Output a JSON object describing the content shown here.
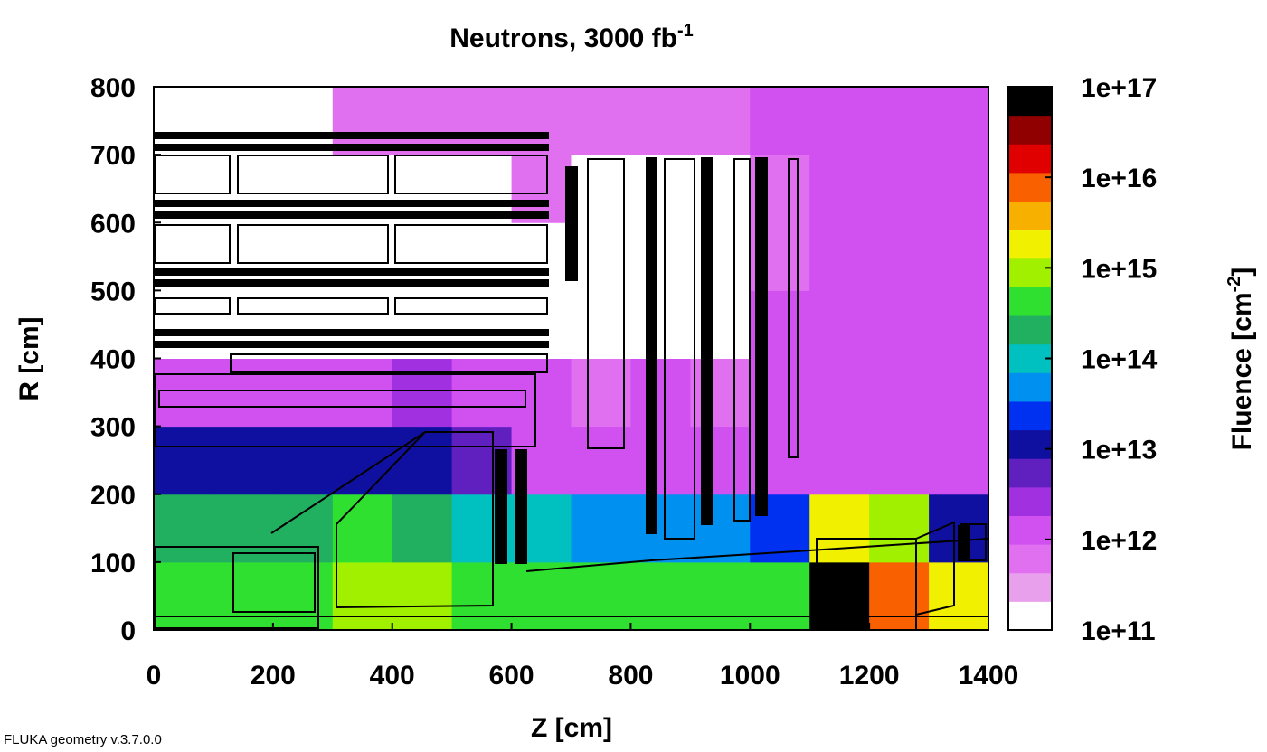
{
  "chart_data": {
    "type": "heatmap",
    "title": "Neutrons, 3000 fb",
    "title_superscript": "-1",
    "x_label": "Z [cm]",
    "y_label": "R [cm]",
    "colorbar_label": "Fluence [cm",
    "colorbar_label_superscript": "-2",
    "colorbar_label_end": "]",
    "footer": "FLUKA geometry v.3.7.0.0",
    "xlim": [
      0,
      1400
    ],
    "ylim": [
      0,
      800
    ],
    "xticks": [
      0,
      200,
      400,
      600,
      800,
      1000,
      1200,
      1400
    ],
    "yticks": [
      0,
      100,
      200,
      300,
      400,
      500,
      600,
      700,
      800
    ],
    "xbins": [
      0,
      100,
      200,
      300,
      400,
      500,
      600,
      700,
      800,
      900,
      1000,
      1100,
      1200,
      1300,
      1400
    ],
    "ybins": [
      0,
      100,
      200,
      300,
      400,
      500,
      600,
      700,
      800
    ],
    "log_color_scale": true,
    "zlim": [
      100000000000.0,
      1e+17
    ],
    "zticks": [
      {
        "value": 100000000000.0,
        "label": "1e+11"
      },
      {
        "value": 1000000000000.0,
        "label": "1e+12"
      },
      {
        "value": 10000000000000.0,
        "label": "1e+13"
      },
      {
        "value": 100000000000000.0,
        "label": "1e+14"
      },
      {
        "value": 1000000000000000.0,
        "label": "1e+15"
      },
      {
        "value": 1e+16,
        "label": "1e+16"
      },
      {
        "value": 1e+17,
        "label": "1e+17"
      }
    ],
    "colors": [
      "#ffffff",
      "#e8a0ec",
      "#e070f0",
      "#d050f0",
      "#a030e0",
      "#6020c0",
      "#1010a0",
      "#0030f0",
      "#0090f0",
      "#00c0c0",
      "#20b060",
      "#30e030",
      "#a0f000",
      "#f0f000",
      "#f8b000",
      "#f86000",
      "#e00000",
      "#900000",
      "#000000"
    ],
    "z": [
      [
        500000000000000.0,
        500000000000000.0,
        500000000000000.0,
        2000000000000000.0,
        1000000000000000.0,
        500000000000000.0,
        500000000000000.0,
        500000000000000.0,
        500000000000000.0,
        500000000000000.0,
        500000000000000.0,
        1e+17,
        1e+16,
        3000000000000000.0
      ],
      [
        300000000000000.0,
        300000000000000.0,
        300000000000000.0,
        500000000000000.0,
        300000000000000.0,
        100000000000000.0,
        100000000000000.0,
        50000000000000.0,
        50000000000000.0,
        50000000000000.0,
        30000000000000.0,
        3000000000000000.0,
        1000000000000000.0,
        20000000000000.0
      ],
      [
        10000000000000.0,
        10000000000000.0,
        10000000000000.0,
        10000000000000.0,
        20000000000000.0,
        5000000000000.0,
        2000000000000.0,
        1000000000000.0,
        2000000000000.0,
        1000000000000.0,
        1000000000000.0,
        1000000000000.0,
        1000000000000.0,
        1000000000000.0
      ],
      [
        2000000000000.0,
        2000000000000.0,
        2000000000000.0,
        2000000000000.0,
        3000000000000.0,
        2000000000000.0,
        1000000000000.0,
        500000000000.0,
        1000000000000.0,
        500000000000.0,
        1000000000000.0,
        1000000000000.0,
        1000000000000.0,
        1000000000000.0
      ],
      [
        100000000000.0,
        100000000000.0,
        100000000000.0,
        100000000000.0,
        100000000000.0,
        100000000000.0,
        100000000000.0,
        100000000000.0,
        100000000000.0,
        100000000000.0,
        1000000000000.0,
        1000000000000.0,
        1000000000000.0,
        1000000000000.0
      ],
      [
        100000000000.0,
        100000000000.0,
        100000000000.0,
        100000000000.0,
        100000000000.0,
        100000000000.0,
        100000000000.0,
        100000000000.0,
        100000000000.0,
        100000000000.0,
        500000000000.0,
        1000000000000.0,
        1000000000000.0,
        1000000000000.0
      ],
      [
        100000000000.0,
        100000000000.0,
        100000000000.0,
        100000000000.0,
        100000000000.0,
        100000000000.0,
        500000000000.0,
        100000000000.0,
        100000000000.0,
        100000000000.0,
        500000000000.0,
        1000000000000.0,
        1000000000000.0,
        1000000000000.0
      ],
      [
        100000000000.0,
        100000000000.0,
        100000000000.0,
        500000000000.0,
        500000000000.0,
        500000000000.0,
        500000000000.0,
        500000000000.0,
        500000000000.0,
        500000000000.0,
        1000000000000.0,
        1000000000000.0,
        1000000000000.0,
        1000000000000.0
      ]
    ]
  }
}
